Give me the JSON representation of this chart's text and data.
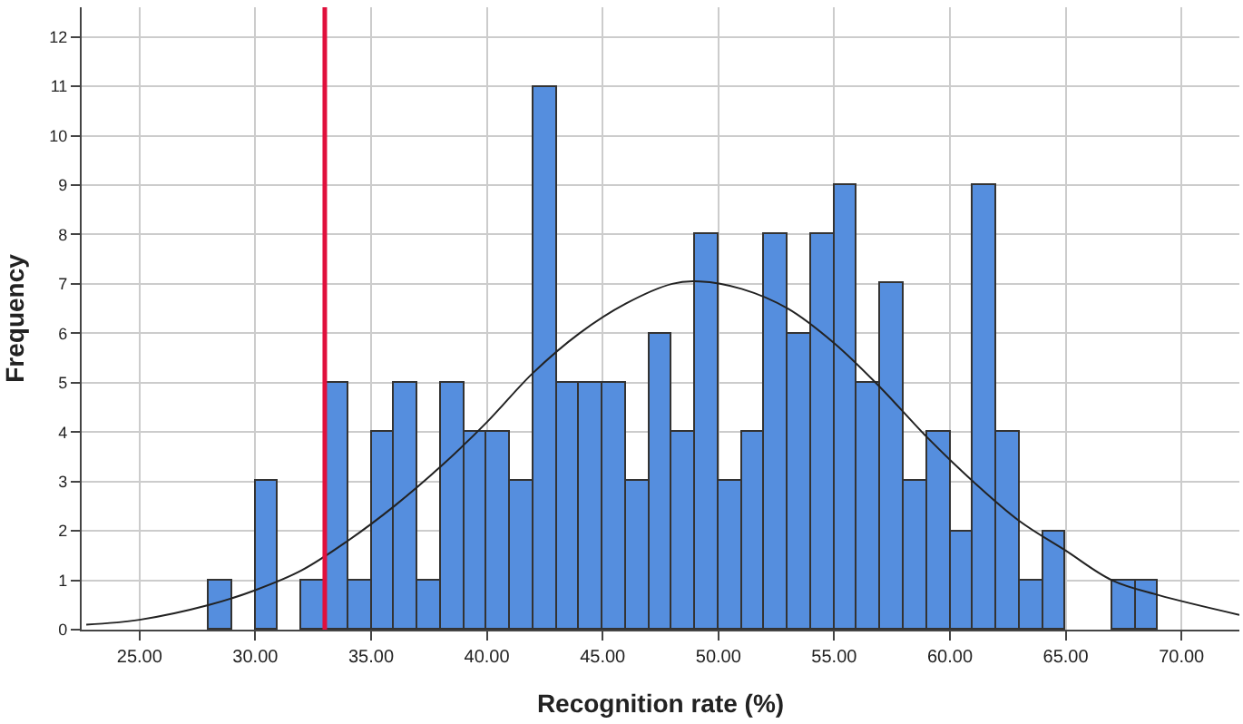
{
  "chart_data": {
    "type": "histogram",
    "xlabel": "Recognition rate (%)",
    "ylabel": "Frequency",
    "bins": [
      28,
      29,
      30,
      31,
      32,
      33,
      34,
      35,
      36,
      37,
      38,
      39,
      40,
      41,
      42,
      43,
      44,
      45,
      46,
      47,
      48,
      49,
      50,
      51,
      52,
      53,
      54,
      55,
      56,
      57,
      58,
      59,
      60,
      61,
      62,
      63,
      64,
      65,
      66,
      67,
      68,
      69
    ],
    "values": [
      1,
      0,
      3,
      0,
      1,
      5,
      1,
      4,
      5,
      1,
      5,
      4,
      4,
      3,
      11,
      5,
      5,
      5,
      3,
      6,
      4,
      8,
      3,
      4,
      8,
      6,
      8,
      9,
      5,
      7,
      3,
      4,
      2,
      9,
      4,
      1,
      2,
      0,
      0,
      1,
      1
    ],
    "color": "#558ede",
    "series": [
      {
        "type": "line",
        "color": "#222222",
        "x": [
          22.7,
          25,
          28,
          30,
          32,
          34,
          36,
          38,
          40,
          42,
          44,
          46,
          48,
          49.2,
          51,
          53,
          55,
          57,
          59,
          61,
          63,
          65,
          67,
          69,
          72.5
        ],
        "values": [
          0.1,
          0.2,
          0.5,
          0.8,
          1.2,
          1.8,
          2.5,
          3.3,
          4.2,
          5.2,
          6.0,
          6.6,
          7.0,
          7.05,
          6.9,
          6.5,
          5.8,
          4.9,
          3.9,
          3.0,
          2.2,
          1.6,
          1.0,
          0.7,
          0.3
        ]
      }
    ],
    "ref_lines": [
      {
        "axis": "x",
        "value": 33,
        "color": "#e0103c"
      }
    ],
    "xlim": [
      22.5,
      72.5
    ],
    "ylim": [
      0,
      12.6
    ],
    "xticks": [
      {
        "value": 25,
        "label": "25.00"
      },
      {
        "value": 30,
        "label": "30.00"
      },
      {
        "value": 35,
        "label": "35.00"
      },
      {
        "value": 40,
        "label": "40.00"
      },
      {
        "value": 45,
        "label": "45.00"
      },
      {
        "value": 50,
        "label": "50.00"
      },
      {
        "value": 55,
        "label": "55.00"
      },
      {
        "value": 60,
        "label": "60.00"
      },
      {
        "value": 65,
        "label": "65.00"
      },
      {
        "value": 70,
        "label": "70.00"
      }
    ],
    "yticks": [
      0,
      1,
      2,
      3,
      4,
      5,
      6,
      7,
      8,
      9,
      10,
      11,
      12
    ],
    "grid": true
  }
}
